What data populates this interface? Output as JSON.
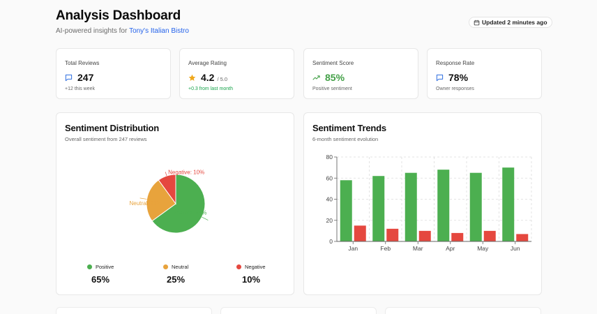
{
  "header": {
    "title": "Analysis Dashboard",
    "subtitle_prefix": "AI-powered insights for ",
    "business_name": "Tony's Italian Bistro",
    "updated": "Updated 2 minutes ago"
  },
  "stats": [
    {
      "label": "Total Reviews",
      "value": "247",
      "suffix": "",
      "sub": "+12 this week",
      "icon": "message-square-icon"
    },
    {
      "label": "Average Rating",
      "value": "4.2",
      "suffix": "/ 5.0",
      "sub": "+0.3 from last month",
      "icon": "star-icon"
    },
    {
      "label": "Sentiment Score",
      "value": "85%",
      "suffix": "",
      "sub": "Positive sentiment",
      "icon": "trending-up-icon"
    },
    {
      "label": "Response Rate",
      "value": "78%",
      "suffix": "",
      "sub": "Owner responses",
      "icon": "message-square-icon"
    }
  ],
  "distribution": {
    "title": "Sentiment Distribution",
    "subtitle": "Overall sentiment from 247 reviews",
    "legend": [
      {
        "label": "Positive",
        "pct": "65%",
        "color": "#4caf50"
      },
      {
        "label": "Neutral",
        "pct": "25%",
        "color": "#e8a33c"
      },
      {
        "label": "Negative",
        "pct": "10%",
        "color": "#e5483f"
      }
    ]
  },
  "trends": {
    "title": "Sentiment Trends",
    "subtitle": "6-month sentiment evolution"
  },
  "colors": {
    "positive": "#4caf50",
    "neutral": "#e8a33c",
    "negative": "#e5483f",
    "accent": "#2563eb"
  },
  "chart_data": [
    {
      "type": "pie",
      "labels": [
        "Positive",
        "Neutral",
        "Negative"
      ],
      "values": [
        65,
        25,
        10
      ],
      "slice_labels": [
        "Positive: 65%",
        "Neutral: 25%",
        "Negative: 10%"
      ],
      "colors": [
        "#4caf50",
        "#e8a33c",
        "#e5483f"
      ],
      "title": "Sentiment Distribution"
    },
    {
      "type": "bar",
      "categories": [
        "Jan",
        "Feb",
        "Mar",
        "Apr",
        "May",
        "Jun"
      ],
      "series": [
        {
          "values": [
            58,
            62,
            65,
            68,
            65,
            70
          ],
          "color": "#4caf50"
        },
        {
          "values": [
            15,
            12,
            10,
            8,
            10,
            7
          ],
          "color": "#e5483f"
        }
      ],
      "yticks": [
        0,
        20,
        40,
        60,
        80
      ],
      "ylim": [
        0,
        80
      ],
      "grid": true,
      "title": "Sentiment Trends"
    }
  ]
}
